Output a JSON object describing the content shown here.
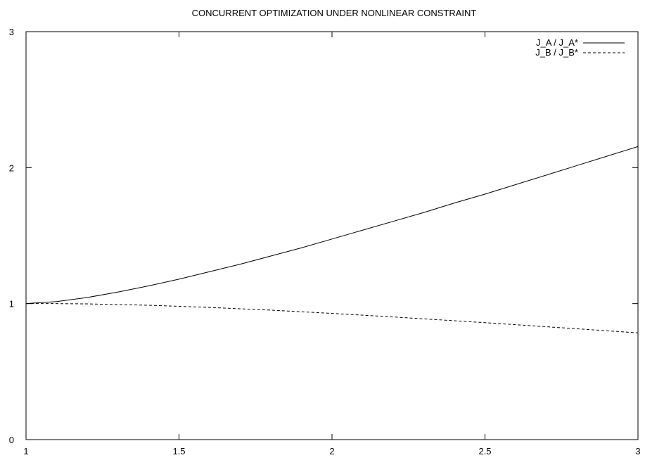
{
  "chart_data": {
    "type": "line",
    "title": "CONCURRENT OPTIMIZATION UNDER NONLINEAR CONSTRAINT",
    "xlabel": "",
    "ylabel": "",
    "xlim": [
      1,
      3
    ],
    "ylim": [
      0,
      3
    ],
    "x_ticks": [
      1,
      1.5,
      2,
      2.5,
      3
    ],
    "x_tick_labels": [
      "1",
      "1.5",
      "2",
      "2.5",
      "3"
    ],
    "y_ticks": [
      0,
      1,
      2,
      3
    ],
    "y_tick_labels": [
      "0",
      "1",
      "2",
      "3"
    ],
    "grid": false,
    "legend_position": "top-right",
    "series": [
      {
        "name": "J_A / J_A*",
        "style": "solid",
        "color": "#000000",
        "x": [
          1.0,
          1.1,
          1.2,
          1.3,
          1.4,
          1.5,
          1.6,
          1.7,
          1.8,
          1.9,
          2.0,
          2.1,
          2.2,
          2.3,
          2.4,
          2.5,
          2.6,
          2.7,
          2.8,
          2.9,
          3.0
        ],
        "y": [
          1.0,
          1.015,
          1.045,
          1.085,
          1.13,
          1.18,
          1.235,
          1.29,
          1.35,
          1.41,
          1.475,
          1.54,
          1.605,
          1.67,
          1.74,
          1.805,
          1.875,
          1.945,
          2.015,
          2.085,
          2.155
        ]
      },
      {
        "name": "J_B / J_B*",
        "style": "dashed",
        "color": "#000000",
        "x": [
          1.0,
          1.1,
          1.2,
          1.3,
          1.4,
          1.5,
          1.6,
          1.7,
          1.8,
          1.9,
          2.0,
          2.1,
          2.2,
          2.3,
          2.4,
          2.5,
          2.6,
          2.7,
          2.8,
          2.9,
          3.0
        ],
        "y": [
          1.0,
          1.0,
          0.998,
          0.993,
          0.988,
          0.98,
          0.972,
          0.962,
          0.952,
          0.94,
          0.928,
          0.915,
          0.902,
          0.888,
          0.874,
          0.86,
          0.845,
          0.83,
          0.815,
          0.8,
          0.785
        ]
      }
    ]
  }
}
